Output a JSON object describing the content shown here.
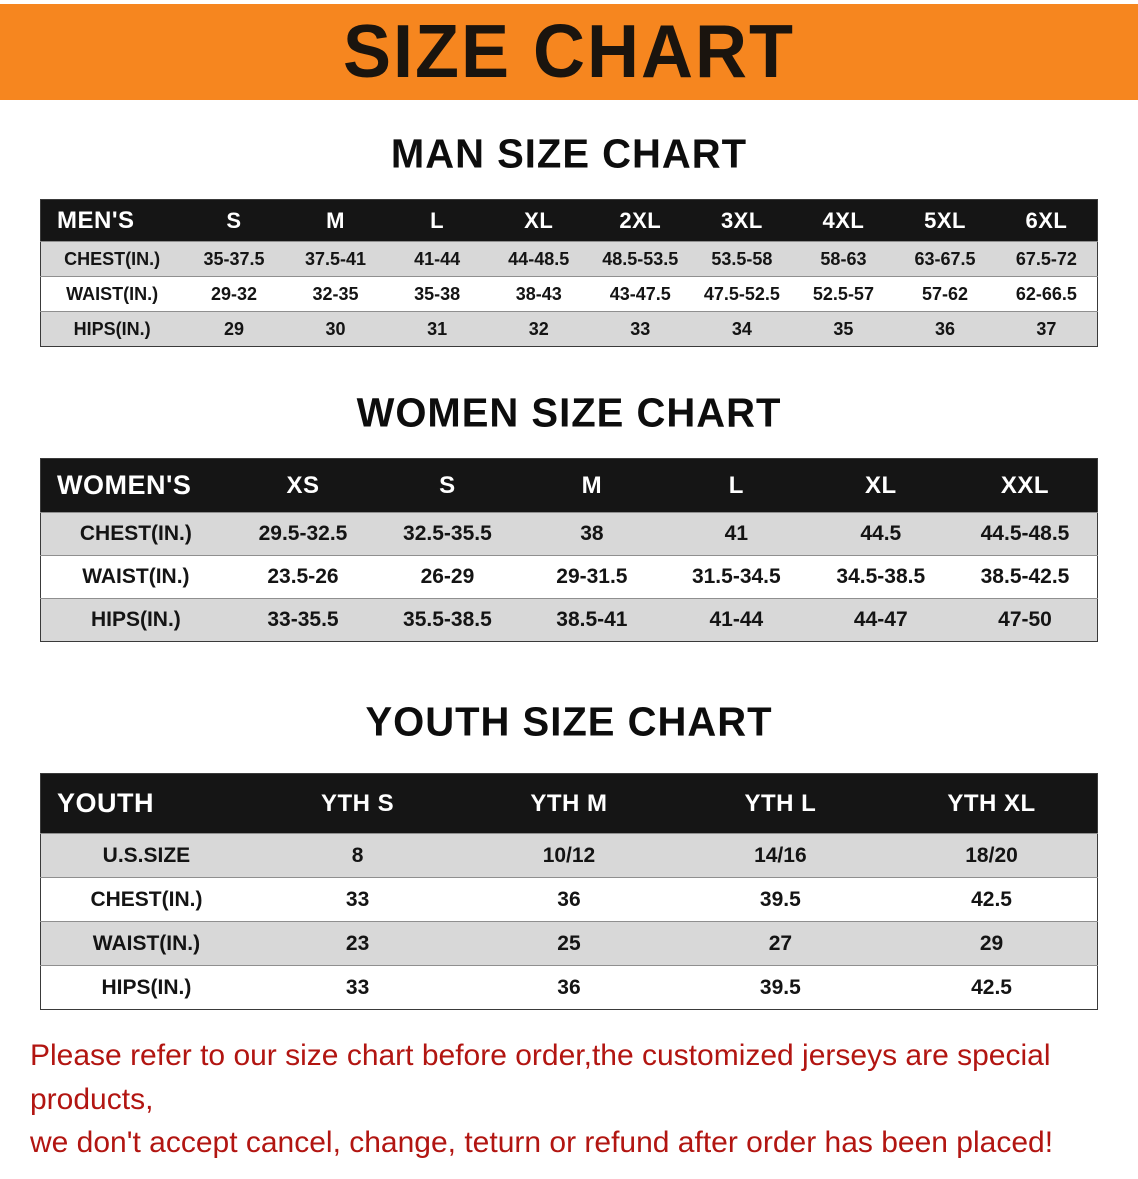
{
  "banner": {
    "title": "SIZE CHART"
  },
  "sections": [
    {
      "id": "men",
      "heading": "MAN SIZE CHART",
      "table": {
        "header": [
          "MEN'S",
          "S",
          "M",
          "L",
          "XL",
          "2XL",
          "3XL",
          "4XL",
          "5XL",
          "6XL"
        ],
        "rows": [
          [
            "CHEST(IN.)",
            "35-37.5",
            "37.5-41",
            "41-44",
            "44-48.5",
            "48.5-53.5",
            "53.5-58",
            "58-63",
            "63-67.5",
            "67.5-72"
          ],
          [
            "WAIST(IN.)",
            "29-32",
            "32-35",
            "35-38",
            "38-43",
            "43-47.5",
            "47.5-52.5",
            "52.5-57",
            "57-62",
            "62-66.5"
          ],
          [
            "HIPS(IN.)",
            "29",
            "30",
            "31",
            "32",
            "33",
            "34",
            "35",
            "36",
            "37"
          ]
        ]
      }
    },
    {
      "id": "women",
      "heading": "WOMEN SIZE CHART",
      "table": {
        "header": [
          "WOMEN'S",
          "XS",
          "S",
          "M",
          "L",
          "XL",
          "XXL"
        ],
        "rows": [
          [
            "CHEST(IN.)",
            "29.5-32.5",
            "32.5-35.5",
            "38",
            "41",
            "44.5",
            "44.5-48.5"
          ],
          [
            "WAIST(IN.)",
            "23.5-26",
            "26-29",
            "29-31.5",
            "31.5-34.5",
            "34.5-38.5",
            "38.5-42.5"
          ],
          [
            "HIPS(IN.)",
            "33-35.5",
            "35.5-38.5",
            "38.5-41",
            "41-44",
            "44-47",
            "47-50"
          ]
        ]
      }
    },
    {
      "id": "youth",
      "heading": "YOUTH SIZE CHART",
      "table": {
        "header": [
          "YOUTH",
          "YTH S",
          "YTH M",
          "YTH L",
          "YTH XL"
        ],
        "rows": [
          [
            "U.S.SIZE",
            "8",
            "10/12",
            "14/16",
            "18/20"
          ],
          [
            "CHEST(IN.)",
            "33",
            "36",
            "39.5",
            "42.5"
          ],
          [
            "WAIST(IN.)",
            "23",
            "25",
            "27",
            "29"
          ],
          [
            "HIPS(IN.)",
            "33",
            "36",
            "39.5",
            "42.5"
          ]
        ]
      }
    }
  ],
  "disclaimer": {
    "lines": [
      "Please refer to our size chart before order,the customized jerseys are special products,",
      "we don't accept cancel, change, teturn or refund after order has been placed!"
    ]
  },
  "colors": {
    "banner_bg": "#f6861f",
    "header_bg": "#151515",
    "row_alt": "#d8d8d8",
    "row_base": "#ffffff",
    "disclaimer_text": "#b21511"
  }
}
